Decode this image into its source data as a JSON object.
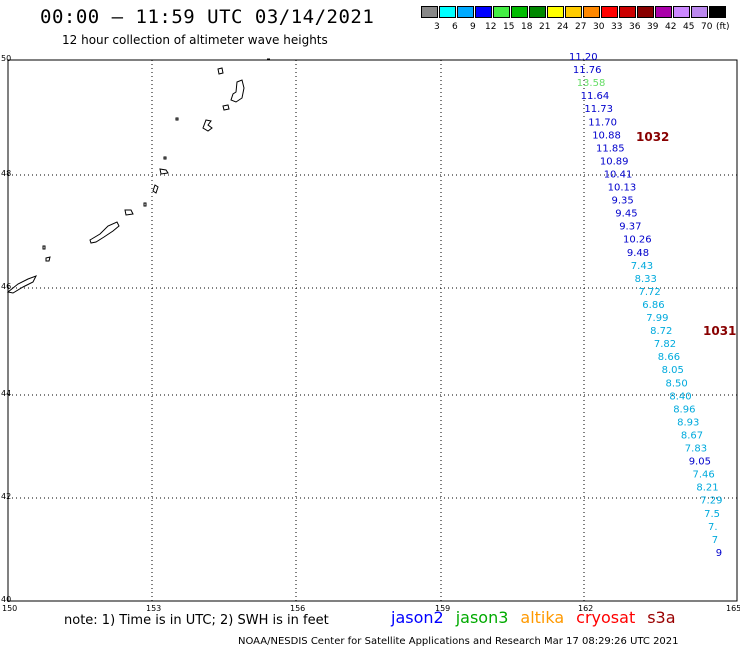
{
  "title": "00:00 – 11:59 UTC 03/14/2021",
  "subtitle": "12 hour collection of altimeter wave heights",
  "legend": {
    "unit": "(ft)",
    "colors": [
      "#888888",
      "#00ffff",
      "#00aaff",
      "#0000ff",
      "#44ee44",
      "#00bb00",
      "#008800",
      "#ffff00",
      "#ffcc00",
      "#ff8800",
      "#ff0000",
      "#cc0000",
      "#880000",
      "#aa00aa",
      "#cc88ff",
      "#bb88ee",
      "#000000"
    ],
    "labels": [
      "3",
      "6",
      "9",
      "12",
      "15",
      "18",
      "21",
      "24",
      "27",
      "30",
      "33",
      "36",
      "39",
      "42",
      "45",
      "70"
    ]
  },
  "axes": {
    "lat_ticks": [
      "50",
      "48",
      "46",
      "44",
      "42",
      "40"
    ],
    "lon_ticks": [
      "150",
      "153",
      "156",
      "159",
      "162",
      "165"
    ]
  },
  "pressure_labels": [
    {
      "text": "1032",
      "color": "#880000"
    },
    {
      "text": "1031",
      "color": "#880000"
    }
  ],
  "wave_heights": [
    {
      "v": "11.20",
      "c": "#0000cc"
    },
    {
      "v": "11.76",
      "c": "#0000cc"
    },
    {
      "v": "13.58",
      "c": "#66dd66"
    },
    {
      "v": "11.64",
      "c": "#0000cc"
    },
    {
      "v": "11.73",
      "c": "#0000cc"
    },
    {
      "v": "11.70",
      "c": "#0000cc"
    },
    {
      "v": "10.88",
      "c": "#0000cc"
    },
    {
      "v": "11.85",
      "c": "#0000cc"
    },
    {
      "v": "10.89",
      "c": "#0000cc"
    },
    {
      "v": "10.41",
      "c": "#0000cc"
    },
    {
      "v": "10.13",
      "c": "#0000cc"
    },
    {
      "v": "9.35",
      "c": "#0000cc"
    },
    {
      "v": "9.45",
      "c": "#0000cc"
    },
    {
      "v": "9.37",
      "c": "#0000cc"
    },
    {
      "v": "10.26",
      "c": "#0000cc"
    },
    {
      "v": "9.48",
      "c": "#0000cc"
    },
    {
      "v": "7.43",
      "c": "#00aadd"
    },
    {
      "v": "8.33",
      "c": "#00aadd"
    },
    {
      "v": "7.72",
      "c": "#00aadd"
    },
    {
      "v": "6.86",
      "c": "#00aadd"
    },
    {
      "v": "7.99",
      "c": "#00aadd"
    },
    {
      "v": "8.72",
      "c": "#00aadd"
    },
    {
      "v": "7.82",
      "c": "#00aadd"
    },
    {
      "v": "8.66",
      "c": "#00aadd"
    },
    {
      "v": "8.05",
      "c": "#00aadd"
    },
    {
      "v": "8.50",
      "c": "#00aadd"
    },
    {
      "v": "8.40",
      "c": "#00aadd"
    },
    {
      "v": "8.96",
      "c": "#00aadd"
    },
    {
      "v": "8.93",
      "c": "#00aadd"
    },
    {
      "v": "8.67",
      "c": "#00aadd"
    },
    {
      "v": "7.83",
      "c": "#00aadd"
    },
    {
      "v": "9.05",
      "c": "#0000cc"
    },
    {
      "v": "7.46",
      "c": "#00aadd"
    },
    {
      "v": "8.21",
      "c": "#00aadd"
    },
    {
      "v": "7.29",
      "c": "#00aadd"
    },
    {
      "v": "7.5",
      "c": "#00aadd"
    },
    {
      "v": "7.",
      "c": "#00aadd"
    },
    {
      "v": "7",
      "c": "#00aadd"
    },
    {
      "v": "9",
      "c": "#0000cc"
    }
  ],
  "footer": {
    "note": "note:  1) Time is in UTC;  2) SWH is in feet",
    "missions": [
      {
        "name": "jason2",
        "color": "#0000ff"
      },
      {
        "name": "jason3",
        "color": "#00aa00"
      },
      {
        "name": "altika",
        "color": "#ff9900"
      },
      {
        "name": "cryosat",
        "color": "#ff0000"
      },
      {
        "name": "s3a",
        "color": "#990000"
      }
    ],
    "credit": "NOAA/NESDIS Center for Satellite Applications and Research    Mar 17 08:29:26 UTC 2021"
  }
}
